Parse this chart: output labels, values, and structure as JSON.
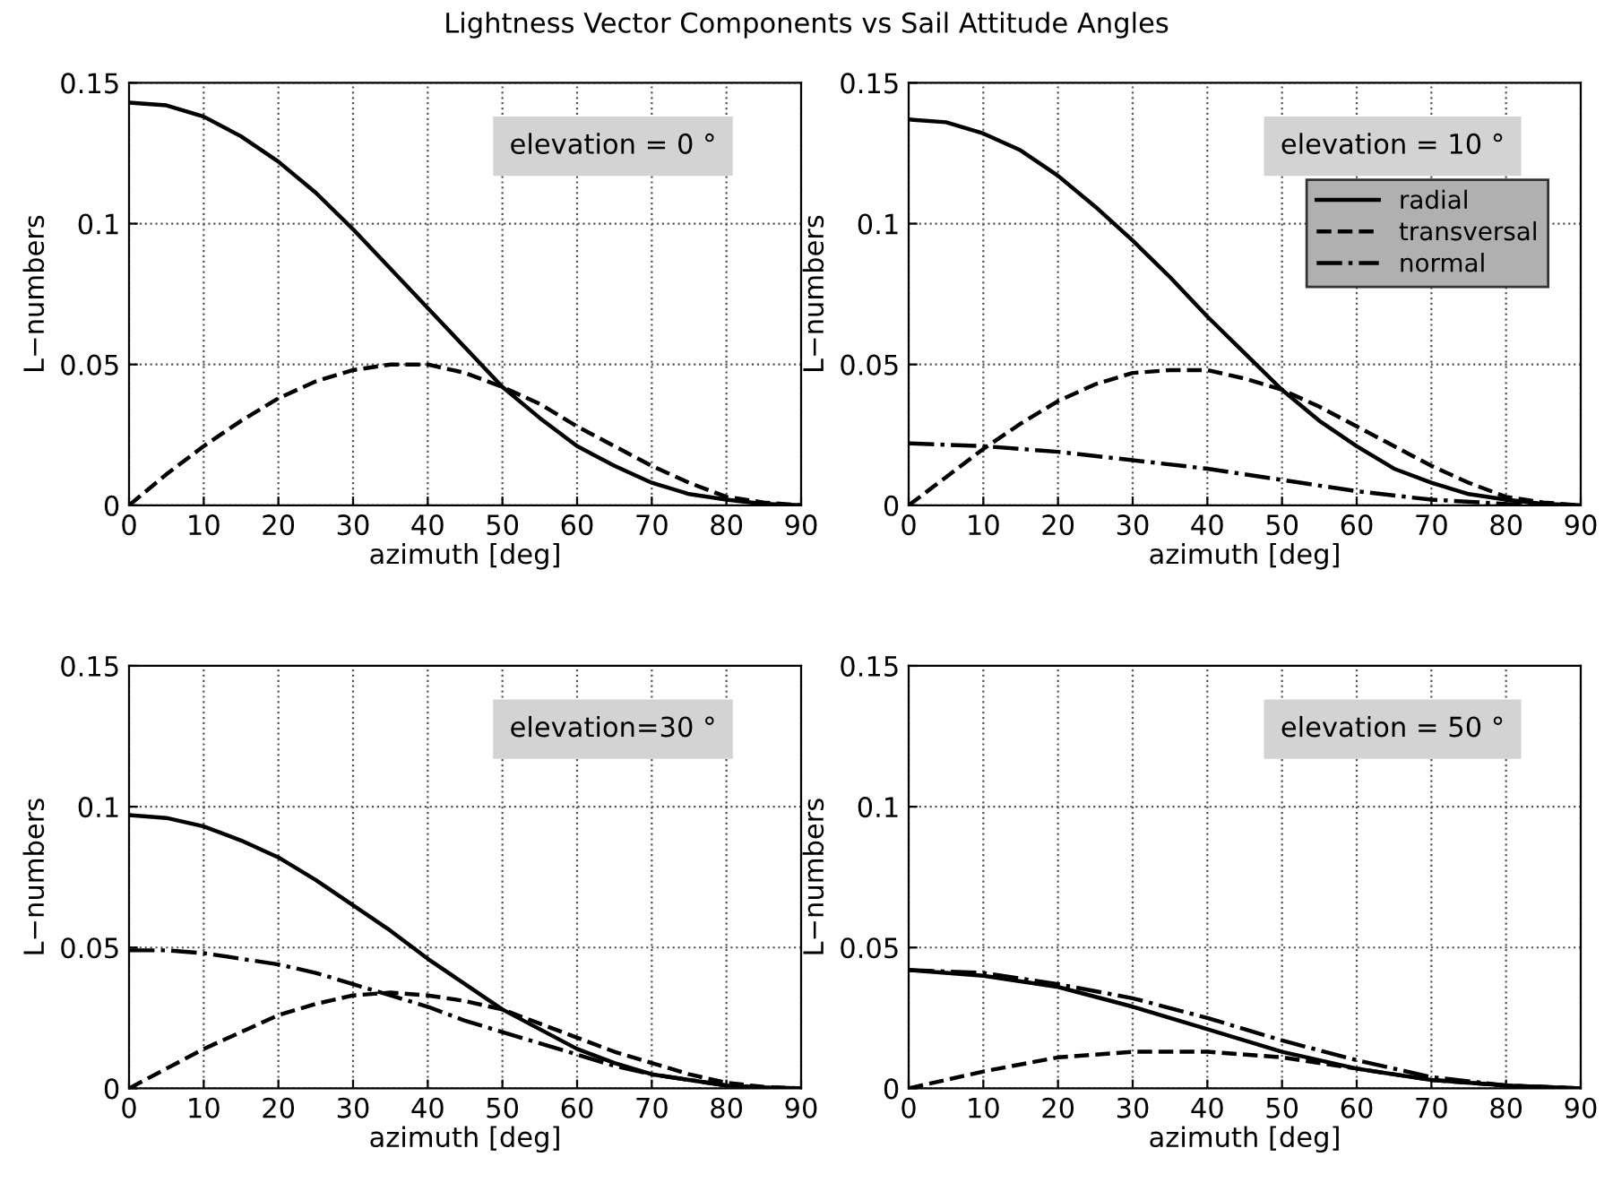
{
  "chart_data": [
    {
      "type": "line",
      "title": "Lightness Vector Components vs Sail Attitude Angles",
      "xlabel": "azimuth [deg]",
      "ylabel": "L−numbers",
      "annotations": [
        "elevation = 0 °"
      ],
      "xlim": [
        0,
        90
      ],
      "ylim": [
        0,
        0.15
      ],
      "xticks": [
        0,
        10,
        20,
        30,
        40,
        50,
        60,
        70,
        80,
        90
      ],
      "yticks": [
        0,
        {
          "value": 0.05,
          "label": "0.05"
        },
        {
          "value": 0.1,
          "label": "0.1"
        },
        {
          "value": 0.15,
          "label": "0.15"
        }
      ],
      "grid": true,
      "legend": false,
      "x": [
        0,
        5,
        10,
        15,
        20,
        25,
        30,
        35,
        40,
        45,
        50,
        55,
        60,
        65,
        70,
        75,
        80,
        85,
        90
      ],
      "series": [
        {
          "color": "#000000",
          "line_style": "solid",
          "values": [
            0.143,
            0.142,
            0.138,
            0.131,
            0.122,
            0.111,
            0.098,
            0.084,
            0.07,
            0.056,
            0.042,
            0.031,
            0.021,
            0.014,
            0.008,
            0.004,
            0.002,
            0.0005,
            0
          ]
        },
        {
          "color": "#000000",
          "line_style": "dashed",
          "values": [
            0,
            0.011,
            0.021,
            0.03,
            0.038,
            0.044,
            0.048,
            0.05,
            0.05,
            0.047,
            0.042,
            0.036,
            0.028,
            0.021,
            0.014,
            0.008,
            0.003,
            0.001,
            0
          ]
        }
      ]
    },
    {
      "type": "line",
      "xlabel": "azimuth [deg]",
      "ylabel": "L−numbers",
      "annotations": [
        "elevation = 10 °"
      ],
      "xlim": [
        0,
        90
      ],
      "ylim": [
        0,
        0.15
      ],
      "xticks": [
        0,
        10,
        20,
        30,
        40,
        50,
        60,
        70,
        80,
        90
      ],
      "yticks": [
        0,
        {
          "value": 0.05,
          "label": "0.05"
        },
        {
          "value": 0.1,
          "label": "0.1"
        },
        {
          "value": 0.15,
          "label": "0.15"
        }
      ],
      "grid": true,
      "legend": "top right",
      "x": [
        0,
        5,
        10,
        15,
        20,
        25,
        30,
        35,
        40,
        45,
        50,
        55,
        60,
        65,
        70,
        75,
        80,
        85,
        90
      ],
      "series": [
        {
          "name": "radial",
          "color": "#000000",
          "line_style": "solid",
          "values": [
            0.137,
            0.136,
            0.132,
            0.126,
            0.117,
            0.106,
            0.094,
            0.081,
            0.067,
            0.054,
            0.041,
            0.03,
            0.021,
            0.013,
            0.008,
            0.004,
            0.002,
            0.0005,
            0
          ]
        },
        {
          "name": "transversal",
          "color": "#000000",
          "line_style": "dashed",
          "values": [
            0,
            0.01,
            0.02,
            0.029,
            0.037,
            0.043,
            0.047,
            0.048,
            0.048,
            0.045,
            0.041,
            0.035,
            0.028,
            0.021,
            0.014,
            0.008,
            0.003,
            0.001,
            0
          ]
        },
        {
          "name": "normal",
          "color": "#000000",
          "line_style": "dashdot",
          "x": [
            0,
            10,
            20,
            30,
            40,
            50,
            60,
            70,
            80,
            90
          ],
          "values": [
            0.022,
            0.021,
            0.019,
            0.016,
            0.013,
            0.009,
            0.005,
            0.002,
            0.0005,
            0
          ]
        }
      ]
    },
    {
      "type": "line",
      "xlabel": "azimuth [deg]",
      "ylabel": "L−numbers",
      "annotations": [
        "elevation=30 °"
      ],
      "xlim": [
        0,
        90
      ],
      "ylim": [
        0,
        0.15
      ],
      "xticks": [
        0,
        10,
        20,
        30,
        40,
        50,
        60,
        70,
        80,
        90
      ],
      "yticks": [
        0,
        {
          "value": 0.05,
          "label": "0.05"
        },
        {
          "value": 0.1,
          "label": "0.1"
        },
        {
          "value": 0.15,
          "label": "0.15"
        }
      ],
      "grid": true,
      "legend": false,
      "x": [
        0,
        5,
        10,
        15,
        20,
        25,
        30,
        35,
        40,
        45,
        50,
        55,
        60,
        65,
        70,
        75,
        80,
        85,
        90
      ],
      "series": [
        {
          "color": "#000000",
          "line_style": "solid",
          "values": [
            0.097,
            0.096,
            0.093,
            0.088,
            0.082,
            0.074,
            0.065,
            0.056,
            0.046,
            0.037,
            0.028,
            0.021,
            0.014,
            0.009,
            0.005,
            0.003,
            0.001,
            0.0003,
            0
          ]
        },
        {
          "color": "#000000",
          "line_style": "dashed",
          "values": [
            0,
            0.007,
            0.014,
            0.02,
            0.026,
            0.03,
            0.033,
            0.034,
            0.033,
            0.031,
            0.028,
            0.023,
            0.018,
            0.013,
            0.009,
            0.005,
            0.002,
            0.0005,
            0
          ]
        },
        {
          "color": "#000000",
          "line_style": "dashdot",
          "values": [
            0.049,
            0.049,
            0.048,
            0.046,
            0.044,
            0.041,
            0.037,
            0.033,
            0.029,
            0.024,
            0.02,
            0.016,
            0.012,
            0.008,
            0.005,
            0.003,
            0.001,
            0.0003,
            0
          ]
        }
      ]
    },
    {
      "type": "line",
      "xlabel": "azimuth [deg]",
      "ylabel": "L−numbers",
      "annotations": [
        "elevation = 50 °"
      ],
      "xlim": [
        0,
        90
      ],
      "ylim": [
        0,
        0.15
      ],
      "xticks": [
        0,
        10,
        20,
        30,
        40,
        50,
        60,
        70,
        80,
        90
      ],
      "yticks": [
        0,
        {
          "value": 0.05,
          "label": "0.05"
        },
        {
          "value": 0.1,
          "label": "0.1"
        },
        {
          "value": 0.15,
          "label": "0.15"
        }
      ],
      "grid": true,
      "legend": false,
      "x": [
        0,
        10,
        20,
        30,
        40,
        50,
        60,
        70,
        80,
        90
      ],
      "series": [
        {
          "color": "#000000",
          "line_style": "solid",
          "values": [
            0.042,
            0.04,
            0.036,
            0.029,
            0.021,
            0.013,
            0.007,
            0.003,
            0.001,
            0
          ]
        },
        {
          "color": "#000000",
          "line_style": "dashed",
          "values": [
            0,
            0.006,
            0.011,
            0.013,
            0.013,
            0.011,
            0.007,
            0.003,
            0.001,
            0
          ]
        },
        {
          "color": "#000000",
          "line_style": "dashdot",
          "values": [
            0.042,
            0.041,
            0.037,
            0.032,
            0.025,
            0.017,
            0.01,
            0.004,
            0.001,
            0
          ]
        }
      ]
    }
  ]
}
